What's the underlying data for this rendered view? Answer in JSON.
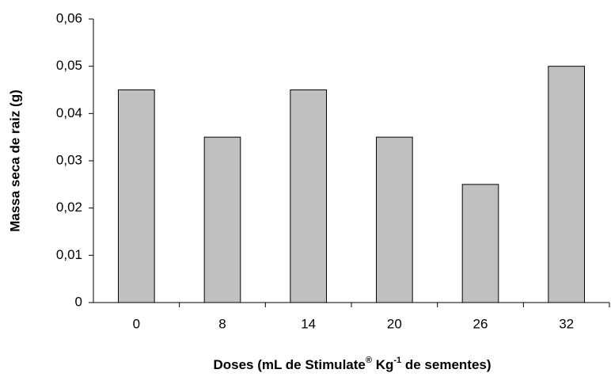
{
  "chart_data": {
    "type": "bar",
    "ylabel": "Massa seca de raiz (g)",
    "xlabel": [
      "Doses (mL de Stimulate",
      "®",
      " Kg",
      "-1",
      " de sementes)"
    ],
    "categories": [
      "0",
      "8",
      "14",
      "20",
      "26",
      "32"
    ],
    "values": [
      0.045,
      0.035,
      0.045,
      0.035,
      0.025,
      0.05
    ],
    "color": "#c0c0c0",
    "ylim": [
      0,
      0.06
    ],
    "yticks": [
      0,
      {
        "value": 0.01,
        "label": "0,01"
      },
      {
        "value": 0.02,
        "label": "0,02"
      },
      {
        "value": 0.03,
        "label": "0,03"
      },
      {
        "value": 0.04,
        "label": "0,04"
      },
      {
        "value": 0.05,
        "label": "0,05"
      },
      {
        "value": 0.06,
        "label": "0,06"
      }
    ],
    "grid": false
  }
}
